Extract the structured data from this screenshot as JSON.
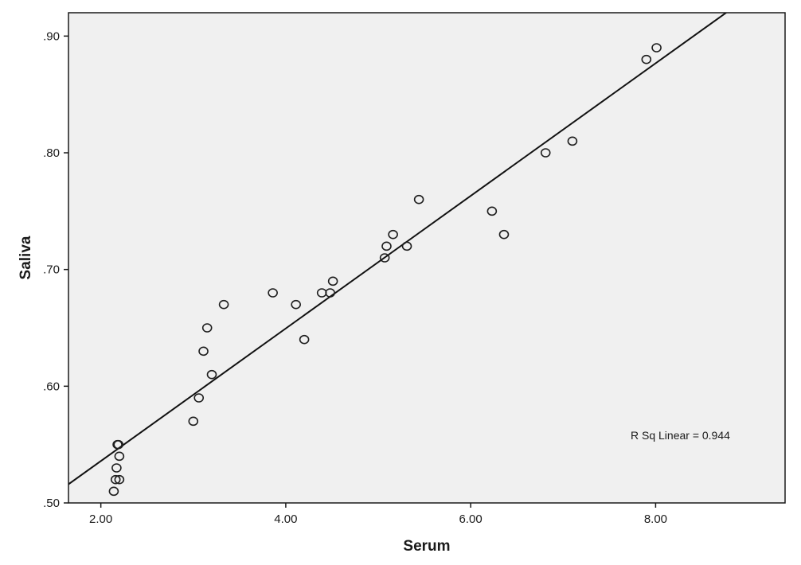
{
  "chart_data": {
    "type": "scatter",
    "xlabel": "Serum",
    "ylabel": "Saliva",
    "xlim": [
      1.65,
      9.4
    ],
    "ylim": [
      0.5,
      0.92
    ],
    "x_ticks": [
      {
        "value": 2,
        "label": "2.00"
      },
      {
        "value": 4,
        "label": "4.00"
      },
      {
        "value": 6,
        "label": "6.00"
      },
      {
        "value": 8,
        "label": "8.00"
      }
    ],
    "y_ticks": [
      {
        "value": 0.5,
        "label": ".50"
      },
      {
        "value": 0.6,
        "label": ".60"
      },
      {
        "value": 0.7,
        "label": ".70"
      },
      {
        "value": 0.8,
        "label": ".80"
      },
      {
        "value": 0.9,
        "label": ".90"
      }
    ],
    "points": [
      {
        "x": 2.18,
        "y": 0.55
      },
      {
        "x": 2.19,
        "y": 0.55
      },
      {
        "x": 2.2,
        "y": 0.54
      },
      {
        "x": 2.17,
        "y": 0.53
      },
      {
        "x": 2.16,
        "y": 0.52
      },
      {
        "x": 2.2,
        "y": 0.52
      },
      {
        "x": 2.14,
        "y": 0.51
      },
      {
        "x": 3.0,
        "y": 0.57
      },
      {
        "x": 3.06,
        "y": 0.59
      },
      {
        "x": 3.11,
        "y": 0.63
      },
      {
        "x": 3.15,
        "y": 0.65
      },
      {
        "x": 3.2,
        "y": 0.61
      },
      {
        "x": 3.33,
        "y": 0.67
      },
      {
        "x": 3.86,
        "y": 0.68
      },
      {
        "x": 4.11,
        "y": 0.67
      },
      {
        "x": 4.2,
        "y": 0.64
      },
      {
        "x": 4.39,
        "y": 0.68
      },
      {
        "x": 4.48,
        "y": 0.68
      },
      {
        "x": 4.51,
        "y": 0.69
      },
      {
        "x": 5.07,
        "y": 0.71
      },
      {
        "x": 5.09,
        "y": 0.72
      },
      {
        "x": 5.16,
        "y": 0.73
      },
      {
        "x": 5.31,
        "y": 0.72
      },
      {
        "x": 5.44,
        "y": 0.76
      },
      {
        "x": 6.23,
        "y": 0.75
      },
      {
        "x": 6.36,
        "y": 0.73
      },
      {
        "x": 6.81,
        "y": 0.8
      },
      {
        "x": 7.1,
        "y": 0.81
      },
      {
        "x": 7.9,
        "y": 0.88
      },
      {
        "x": 8.01,
        "y": 0.89
      }
    ],
    "fit_line": {
      "x": [
        1.65,
        8.78
      ],
      "y": [
        0.516,
        0.921
      ]
    },
    "annotation": "R Sq Linear = 0.944",
    "grid": false,
    "legend": "none"
  },
  "colors": {
    "plot_background": "#f0f0f0",
    "marker_stroke": "#1e1e1e",
    "line": "#111111",
    "frame": "#1a1a1a"
  }
}
